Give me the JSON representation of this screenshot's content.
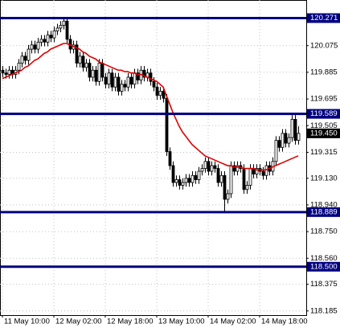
{
  "chart_data": {
    "type": "candlestick",
    "categories": [
      "11 May 10:00",
      null,
      null,
      null,
      null,
      null,
      null,
      null,
      null,
      null,
      null,
      null,
      null,
      null,
      null,
      null,
      "12 May 02:00",
      null,
      null,
      null,
      null,
      null,
      null,
      null,
      null,
      null,
      null,
      null,
      null,
      null,
      null,
      null,
      "12 May 18:00",
      null,
      null,
      null,
      null,
      null,
      null,
      null,
      null,
      null,
      null,
      null,
      null,
      null,
      null,
      null,
      "13 May 10:00",
      null,
      null,
      null,
      null,
      null,
      null,
      null,
      null,
      null,
      null,
      null,
      null,
      null,
      null,
      null,
      "14 May 02:00",
      null,
      null,
      null,
      null,
      null,
      null,
      null,
      null,
      null,
      null,
      null,
      null,
      null,
      null,
      null,
      "14 May 18:00",
      null,
      null,
      null,
      null,
      null,
      null,
      null,
      null,
      null,
      null,
      null,
      null
    ],
    "open": [
      119.9,
      119.88,
      119.87,
      119.9,
      119.87,
      119.9,
      119.95,
      120.0,
      119.97,
      120.05,
      120.08,
      120.05,
      120.1,
      120.12,
      120.1,
      120.15,
      120.13,
      120.18,
      120.2,
      120.22,
      120.25,
      120.12,
      120.05,
      120.08,
      119.95,
      120.0,
      119.92,
      119.95,
      119.85,
      119.9,
      119.82,
      119.95,
      119.85,
      119.8,
      119.88,
      119.78,
      119.85,
      119.75,
      119.8,
      119.78,
      119.85,
      119.8,
      119.88,
      119.83,
      119.9,
      119.85,
      119.88,
      119.82,
      119.78,
      119.72,
      119.75,
      119.7,
      119.32,
      119.22,
      119.1,
      119.12,
      119.08,
      119.1,
      119.13,
      119.1,
      119.15,
      119.12,
      119.18,
      119.2,
      119.25,
      119.18,
      119.22,
      119.2,
      119.1,
      119.15,
      118.98,
      119.02,
      119.22,
      119.18,
      119.22,
      119.2,
      119.05,
      119.08,
      119.2,
      119.16,
      119.2,
      119.18,
      119.15,
      119.22,
      119.18,
      119.25,
      119.4,
      119.35,
      119.45,
      119.38,
      119.42,
      119.55,
      119.4
    ],
    "high": [
      119.93,
      119.91,
      119.93,
      119.93,
      119.93,
      119.98,
      120.03,
      120.03,
      120.08,
      120.11,
      120.11,
      120.13,
      120.15,
      120.15,
      120.18,
      120.18,
      120.21,
      120.23,
      120.25,
      120.28,
      120.28,
      120.15,
      120.11,
      120.11,
      120.03,
      120.03,
      119.98,
      119.98,
      119.93,
      119.93,
      119.98,
      119.98,
      119.88,
      119.91,
      119.91,
      119.88,
      119.88,
      119.83,
      119.83,
      119.88,
      119.88,
      119.91,
      119.91,
      119.93,
      119.93,
      119.91,
      119.91,
      119.85,
      119.81,
      119.78,
      119.78,
      119.73,
      119.35,
      119.25,
      119.15,
      119.15,
      119.13,
      119.16,
      119.16,
      119.18,
      119.18,
      119.21,
      119.23,
      119.28,
      119.28,
      119.25,
      119.25,
      119.23,
      119.18,
      119.18,
      119.05,
      119.25,
      119.25,
      119.25,
      119.25,
      119.23,
      119.11,
      119.23,
      119.23,
      119.23,
      119.23,
      119.21,
      119.25,
      119.25,
      119.28,
      119.43,
      119.43,
      119.48,
      119.48,
      119.45,
      119.58,
      119.58,
      119.5
    ],
    "low": [
      119.85,
      119.84,
      119.84,
      119.84,
      119.84,
      119.87,
      119.92,
      119.94,
      119.94,
      120.02,
      120.02,
      120.02,
      120.07,
      120.07,
      120.07,
      120.1,
      120.1,
      120.15,
      120.17,
      120.19,
      120.09,
      120.02,
      120.02,
      119.92,
      119.92,
      119.89,
      119.89,
      119.82,
      119.82,
      119.79,
      119.79,
      119.82,
      119.77,
      119.77,
      119.75,
      119.75,
      119.72,
      119.72,
      119.75,
      119.75,
      119.77,
      119.77,
      119.8,
      119.8,
      119.82,
      119.82,
      119.79,
      119.75,
      119.69,
      119.69,
      119.67,
      119.29,
      119.19,
      119.07,
      119.07,
      119.05,
      119.05,
      119.07,
      119.07,
      119.07,
      119.09,
      119.09,
      119.15,
      119.17,
      119.15,
      119.15,
      119.17,
      119.07,
      119.07,
      118.89,
      118.95,
      118.99,
      119.15,
      119.15,
      119.17,
      119.02,
      119.02,
      119.05,
      119.13,
      119.13,
      119.15,
      119.12,
      119.12,
      119.15,
      119.15,
      119.22,
      119.32,
      119.32,
      119.35,
      119.35,
      119.39,
      119.37,
      119.37
    ],
    "close": [
      119.88,
      119.87,
      119.9,
      119.87,
      119.9,
      119.95,
      120.0,
      119.97,
      120.05,
      120.08,
      120.05,
      120.1,
      120.12,
      120.1,
      120.15,
      120.13,
      120.18,
      120.2,
      120.22,
      120.25,
      120.12,
      120.05,
      120.08,
      119.95,
      120.0,
      119.92,
      119.95,
      119.85,
      119.9,
      119.82,
      119.95,
      119.85,
      119.8,
      119.88,
      119.78,
      119.85,
      119.75,
      119.8,
      119.78,
      119.85,
      119.8,
      119.88,
      119.83,
      119.9,
      119.85,
      119.88,
      119.82,
      119.78,
      119.72,
      119.75,
      119.7,
      119.32,
      119.22,
      119.1,
      119.12,
      119.08,
      119.1,
      119.13,
      119.1,
      119.15,
      119.12,
      119.18,
      119.2,
      119.25,
      119.18,
      119.22,
      119.2,
      119.1,
      119.15,
      118.98,
      119.02,
      119.22,
      119.18,
      119.22,
      119.2,
      119.05,
      119.08,
      119.2,
      119.16,
      119.2,
      119.18,
      119.15,
      119.22,
      119.18,
      119.25,
      119.4,
      119.35,
      119.45,
      119.38,
      119.42,
      119.55,
      119.4,
      119.45
    ],
    "ma": {
      "color": "#e00000",
      "values": [
        119.84,
        119.85,
        119.86,
        119.87,
        119.88,
        119.89,
        119.9,
        119.92,
        119.93,
        119.95,
        119.97,
        119.98,
        120.0,
        120.02,
        120.03,
        120.05,
        120.06,
        120.07,
        120.08,
        120.09,
        120.09,
        120.08,
        120.07,
        120.06,
        120.05,
        120.03,
        120.02,
        120.0,
        119.99,
        119.98,
        119.96,
        119.95,
        119.94,
        119.93,
        119.92,
        119.91,
        119.9,
        119.9,
        119.89,
        119.89,
        119.88,
        119.88,
        119.87,
        119.87,
        119.86,
        119.85,
        119.84,
        119.83,
        119.82,
        119.8,
        119.78,
        119.72,
        119.66,
        119.6,
        119.55,
        119.5,
        119.46,
        119.43,
        119.4,
        119.37,
        119.35,
        119.33,
        119.31,
        119.29,
        119.28,
        119.27,
        119.26,
        119.25,
        119.24,
        119.23,
        119.22,
        119.22,
        119.21,
        119.21,
        119.21,
        119.2,
        119.2,
        119.2,
        119.2,
        119.19,
        119.19,
        119.19,
        119.19,
        119.2,
        119.21,
        119.22,
        119.23,
        119.24,
        119.25,
        119.26,
        119.27,
        119.28,
        119.29
      ]
    },
    "levels": [
      120.271,
      119.589,
      118.889,
      {
        "value": 118.5,
        "label": "118.500"
      }
    ],
    "level_color": "#000080",
    "current": {
      "value": 119.45,
      "label": "119.450"
    },
    "ylim": [
      118.155,
      120.4
    ],
    "yticks": [
      120.075,
      119.885,
      119.695,
      119.505,
      119.315,
      {
        "value": 119.13,
        "label": "119.130"
      },
      {
        "value": 118.94,
        "label": "118.940"
      },
      {
        "value": 118.75,
        "label": "118.750"
      },
      {
        "value": 118.56,
        "label": "118.560"
      },
      118.375,
      118.185
    ],
    "grid": true
  }
}
